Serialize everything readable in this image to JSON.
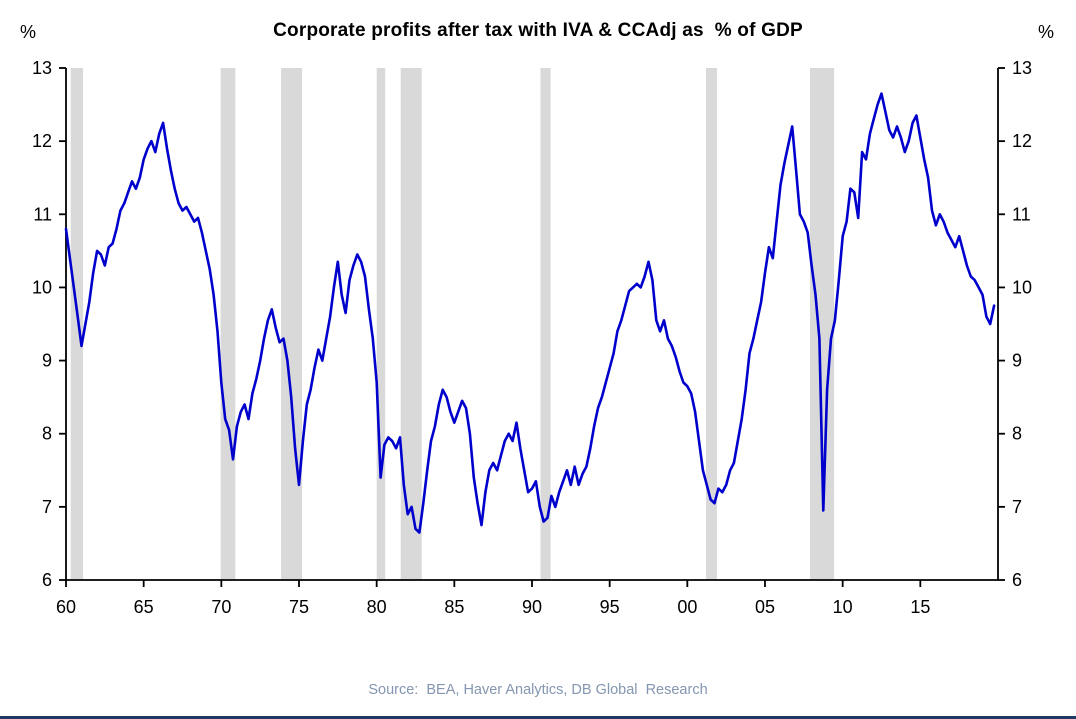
{
  "header": {
    "left_unit": "%",
    "right_unit": "%",
    "title": "Corporate profits after tax with IVA & CCAdj as  % of GDP"
  },
  "footer": {
    "source": "Source:  BEA, Haver Analytics, DB Global  Research"
  },
  "chart_data": {
    "type": "line",
    "title": "Corporate profits after tax with IVA & CCAdj as % of GDP",
    "ylabel_left": "%",
    "ylabel_right": "%",
    "xlim": [
      1960,
      2020
    ],
    "ylim": [
      6,
      13
    ],
    "grid": false,
    "legend": "none",
    "ytick_values": [
      6,
      7,
      8,
      9,
      10,
      11,
      12,
      13
    ],
    "xtick_values": [
      1960,
      1965,
      1970,
      1975,
      1980,
      1985,
      1990,
      1995,
      2000,
      2005,
      2010,
      2015
    ],
    "xtick_labels": [
      "60",
      "65",
      "70",
      "75",
      "80",
      "85",
      "90",
      "95",
      "00",
      "05",
      "10",
      "15"
    ],
    "line_color": "#0000CD",
    "recession_color": "#D9D9D9",
    "axis_color": "#000000",
    "recessions": [
      [
        1960.3,
        1961.1
      ],
      [
        1969.95,
        1970.9
      ],
      [
        1973.85,
        1975.2
      ],
      [
        1980.0,
        1980.55
      ],
      [
        1981.55,
        1982.9
      ],
      [
        1990.55,
        1991.2
      ],
      [
        2001.2,
        2001.9
      ],
      [
        2007.9,
        2009.45
      ]
    ],
    "series": [
      {
        "name": "Corporate profits after tax with IVA & CCAdj as % of GDP",
        "start_year": 1960,
        "period_years": 0.25,
        "values": [
          10.8,
          10.4,
          10.0,
          9.6,
          9.2,
          9.5,
          9.8,
          10.2,
          10.5,
          10.45,
          10.3,
          10.55,
          10.6,
          10.8,
          11.05,
          11.15,
          11.3,
          11.45,
          11.35,
          11.5,
          11.75,
          11.9,
          12.0,
          11.85,
          12.1,
          12.25,
          11.9,
          11.6,
          11.35,
          11.15,
          11.05,
          11.1,
          11.0,
          10.9,
          10.95,
          10.75,
          10.5,
          10.25,
          9.9,
          9.4,
          8.7,
          8.2,
          8.05,
          7.65,
          8.1,
          8.3,
          8.4,
          8.2,
          8.55,
          8.75,
          9.0,
          9.3,
          9.55,
          9.7,
          9.45,
          9.25,
          9.3,
          9.0,
          8.5,
          7.8,
          7.3,
          7.9,
          8.4,
          8.6,
          8.9,
          9.15,
          9.0,
          9.3,
          9.6,
          10.0,
          10.35,
          9.9,
          9.65,
          10.1,
          10.3,
          10.45,
          10.35,
          10.15,
          9.7,
          9.3,
          8.7,
          7.4,
          7.85,
          7.95,
          7.9,
          7.8,
          7.95,
          7.3,
          6.9,
          7.0,
          6.7,
          6.65,
          7.05,
          7.5,
          7.9,
          8.1,
          8.4,
          8.6,
          8.5,
          8.3,
          8.15,
          8.3,
          8.45,
          8.35,
          8.0,
          7.4,
          7.05,
          6.75,
          7.2,
          7.5,
          7.6,
          7.5,
          7.7,
          7.9,
          8.0,
          7.9,
          8.15,
          7.8,
          7.5,
          7.2,
          7.25,
          7.35,
          7.0,
          6.8,
          6.85,
          7.15,
          7.0,
          7.2,
          7.35,
          7.5,
          7.3,
          7.55,
          7.3,
          7.45,
          7.55,
          7.8,
          8.1,
          8.35,
          8.5,
          8.7,
          8.9,
          9.1,
          9.4,
          9.55,
          9.75,
          9.95,
          10.0,
          10.05,
          10.0,
          10.15,
          10.35,
          10.1,
          9.55,
          9.4,
          9.55,
          9.3,
          9.2,
          9.05,
          8.85,
          8.7,
          8.65,
          8.55,
          8.3,
          7.9,
          7.5,
          7.3,
          7.1,
          7.05,
          7.25,
          7.2,
          7.3,
          7.5,
          7.6,
          7.9,
          8.2,
          8.6,
          9.1,
          9.3,
          9.55,
          9.8,
          10.2,
          10.55,
          10.4,
          10.9,
          11.4,
          11.7,
          11.95,
          12.2,
          11.6,
          11.0,
          10.9,
          10.75,
          10.3,
          9.9,
          9.3,
          6.95,
          8.6,
          9.3,
          9.55,
          10.1,
          10.7,
          10.9,
          11.35,
          11.3,
          10.95,
          11.85,
          11.75,
          12.1,
          12.3,
          12.5,
          12.65,
          12.4,
          12.15,
          12.05,
          12.2,
          12.05,
          11.85,
          12.0,
          12.25,
          12.35,
          12.05,
          11.75,
          11.5,
          11.05,
          10.85,
          11.0,
          10.9,
          10.75,
          10.65,
          10.55,
          10.7,
          10.5,
          10.3,
          10.15,
          10.1,
          10.0,
          9.9,
          9.6,
          9.5,
          9.75
        ]
      }
    ]
  }
}
